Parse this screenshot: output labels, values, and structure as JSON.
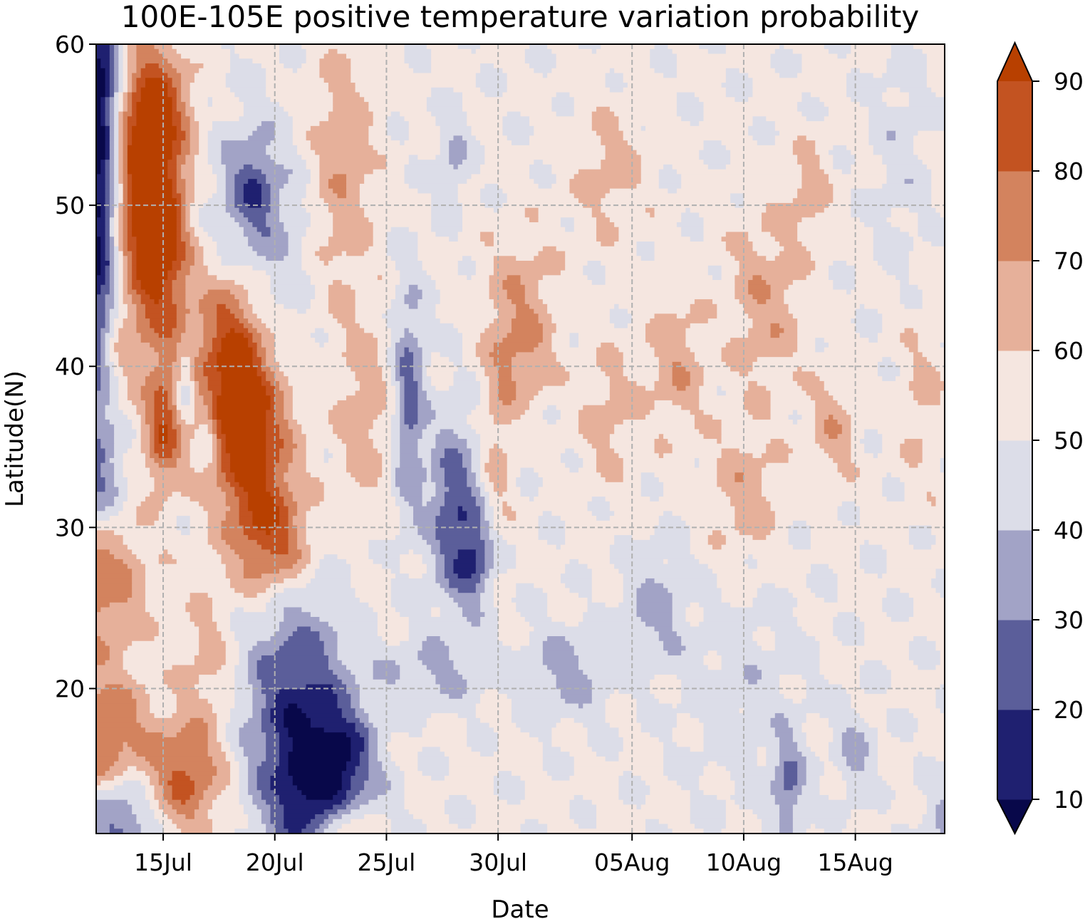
{
  "chart_data": {
    "type": "heatmap",
    "subtype": "filled-contour",
    "title": "100E-105E positive temperature variation probability",
    "xlabel": "Date",
    "ylabel": "Latitude(N)",
    "x_ticks": [
      {
        "label": "15Jul",
        "date": "2023-07-15"
      },
      {
        "label": "20Jul",
        "date": "2023-07-20"
      },
      {
        "label": "25Jul",
        "date": "2023-07-25"
      },
      {
        "label": "30Jul",
        "date": "2023-07-30"
      },
      {
        "label": "05Aug",
        "date": "2023-08-05"
      },
      {
        "label": "10Aug",
        "date": "2023-08-10"
      },
      {
        "label": "15Aug",
        "date": "2023-08-15"
      }
    ],
    "xlim": [
      "2023-07-12",
      "2023-08-19"
    ],
    "y_ticks": [
      20,
      30,
      40,
      50,
      60
    ],
    "ylim": [
      11,
      60
    ],
    "grid": true,
    "colorbar": {
      "levels": [
        10,
        20,
        30,
        40,
        50,
        60,
        70,
        80,
        90
      ],
      "tick_labels": [
        "10",
        "20",
        "30",
        "40",
        "50",
        "60",
        "70",
        "80",
        "90"
      ],
      "extend": "both",
      "colors": [
        "#08084a",
        "#1f2070",
        "#5b5e9a",
        "#a2a3c6",
        "#dcdde8",
        "#f5e6e0",
        "#e6b09a",
        "#d3835e",
        "#c35321",
        "#b84000"
      ]
    },
    "field": {
      "baseline": 52,
      "features": [
        {
          "date": "2023-07-12",
          "lat": 48,
          "sd": 0.7,
          "slat": 7,
          "amp": -45
        },
        {
          "date": "2023-07-12",
          "lat": 58,
          "sd": 0.8,
          "slat": 4,
          "amp": -35
        },
        {
          "date": "2023-07-14",
          "lat": 52,
          "sd": 0.9,
          "slat": 5,
          "amp": 40
        },
        {
          "date": "2023-07-15",
          "lat": 47,
          "sd": 0.9,
          "slat": 5,
          "amp": 36
        },
        {
          "date": "2023-07-15",
          "lat": 56,
          "sd": 1.0,
          "slat": 3,
          "amp": 22
        },
        {
          "date": "2023-07-13",
          "lat": 41,
          "sd": 0.6,
          "slat": 3,
          "amp": 12
        },
        {
          "date": "2023-07-12",
          "lat": 33,
          "sd": 0.9,
          "slat": 3,
          "amp": -22
        },
        {
          "date": "2023-07-15",
          "lat": 36,
          "sd": 0.6,
          "slat": 2.5,
          "amp": 32
        },
        {
          "date": "2023-07-16",
          "lat": 39,
          "sd": 0.3,
          "slat": 1.5,
          "amp": -22
        },
        {
          "date": "2023-07-17",
          "lat": 36,
          "sd": 0.3,
          "slat": 1.2,
          "amp": -18
        },
        {
          "date": "2023-07-12",
          "lat": 27,
          "sd": 1.5,
          "slat": 3,
          "amp": 28
        },
        {
          "date": "2023-07-12",
          "lat": 17,
          "sd": 1.6,
          "slat": 3,
          "amp": 30
        },
        {
          "date": "2023-07-13",
          "lat": 12,
          "sd": 1.2,
          "slat": 2,
          "amp": -30
        },
        {
          "date": "2023-07-16",
          "lat": 14.5,
          "sd": 1.2,
          "slat": 2.5,
          "amp": 30
        },
        {
          "date": "2023-07-17",
          "lat": 22,
          "sd": 0.8,
          "slat": 3,
          "amp": 12
        },
        {
          "date": "2023-07-18",
          "lat": 41,
          "sd": 1.1,
          "slat": 4,
          "amp": 40
        },
        {
          "date": "2023-07-19",
          "lat": 35,
          "sd": 1.2,
          "slat": 4,
          "amp": 40
        },
        {
          "date": "2023-07-20",
          "lat": 29,
          "sd": 1.2,
          "slat": 2.5,
          "amp": 28
        },
        {
          "date": "2023-07-19",
          "lat": 48,
          "sd": 1.6,
          "slat": 5,
          "amp": -18
        },
        {
          "date": "2023-07-19",
          "lat": 51,
          "sd": 0.7,
          "slat": 2,
          "amp": -18
        },
        {
          "date": "2023-07-21",
          "lat": 19,
          "sd": 1.6,
          "slat": 5,
          "amp": -35
        },
        {
          "date": "2023-07-22",
          "lat": 13,
          "sd": 1.6,
          "slat": 3,
          "amp": -30
        },
        {
          "date": "2023-07-23",
          "lat": 16,
          "sd": 1.0,
          "slat": 2,
          "amp": -22
        },
        {
          "date": "2023-07-23",
          "lat": 11.5,
          "sd": 0.8,
          "slat": 1.2,
          "amp": 28
        },
        {
          "date": "2023-07-23",
          "lat": 52,
          "sd": 1.0,
          "slat": 6,
          "amp": 16
        },
        {
          "date": "2023-07-24",
          "lat": 37,
          "sd": 0.9,
          "slat": 4,
          "amp": 14
        },
        {
          "date": "2023-07-26",
          "lat": 38,
          "sd": 0.5,
          "slat": 5,
          "amp": -26
        },
        {
          "date": "2023-07-28",
          "lat": 31,
          "sd": 0.8,
          "slat": 4,
          "amp": -30
        },
        {
          "date": "2023-07-29",
          "lat": 28,
          "sd": 0.6,
          "slat": 2,
          "amp": -24
        },
        {
          "date": "2023-07-27",
          "lat": 21,
          "sd": 1.8,
          "slat": 1.5,
          "amp": -14
        },
        {
          "date": "2023-07-28",
          "lat": 53,
          "sd": 0.5,
          "slat": 2,
          "amp": -14
        },
        {
          "date": "2023-07-31",
          "lat": 44,
          "sd": 1.2,
          "slat": 3,
          "amp": 16
        },
        {
          "date": "2023-07-31",
          "lat": 40,
          "sd": 0.9,
          "slat": 2,
          "amp": 13
        },
        {
          "date": "2023-07-30",
          "lat": 35,
          "sd": 0.5,
          "slat": 4,
          "amp": 12
        },
        {
          "date": "2023-08-02",
          "lat": 21,
          "sd": 1.4,
          "slat": 2,
          "amp": -16
        },
        {
          "date": "2023-08-04",
          "lat": 52,
          "sd": 1.2,
          "slat": 3,
          "amp": 12
        },
        {
          "date": "2023-08-04",
          "lat": 37,
          "sd": 1.0,
          "slat": 3,
          "amp": 12
        },
        {
          "date": "2023-08-06",
          "lat": 25,
          "sd": 1.0,
          "slat": 2.5,
          "amp": -15
        },
        {
          "date": "2023-08-07",
          "lat": 40,
          "sd": 0.9,
          "slat": 3,
          "amp": 16
        },
        {
          "date": "2023-08-10",
          "lat": 32,
          "sd": 1.2,
          "slat": 3,
          "amp": 14
        },
        {
          "date": "2023-08-11",
          "lat": 44,
          "sd": 1.2,
          "slat": 4,
          "amp": 16
        },
        {
          "date": "2023-08-14",
          "lat": 36,
          "sd": 0.7,
          "slat": 2.5,
          "amp": 15
        },
        {
          "date": "2023-08-13",
          "lat": 51,
          "sd": 0.6,
          "slat": 2,
          "amp": 14
        },
        {
          "date": "2023-08-12",
          "lat": 14,
          "sd": 0.5,
          "slat": 2,
          "amp": -24
        },
        {
          "date": "2023-08-15",
          "lat": 16,
          "sd": 0.6,
          "slat": 2,
          "amp": -14
        },
        {
          "date": "2023-08-19",
          "lat": 12,
          "sd": 0.7,
          "slat": 1.5,
          "amp": -14
        },
        {
          "date": "2023-08-17",
          "lat": 53,
          "sd": 0.8,
          "slat": 5,
          "amp": -8
        },
        {
          "date": "2023-08-18",
          "lat": 38,
          "sd": 0.8,
          "slat": 4,
          "amp": 10
        },
        {
          "date": "2023-08-10",
          "lat": 20,
          "sd": 2.0,
          "slat": 5,
          "amp": -8
        }
      ]
    }
  }
}
